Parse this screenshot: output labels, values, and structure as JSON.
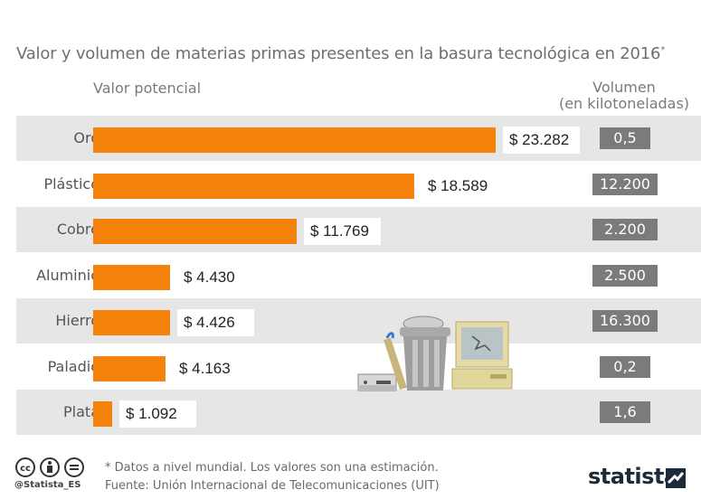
{
  "header": {
    "title": "Valor y volumen de materias primas presentes en la basura tecnológica en 2016",
    "title_mark": "*",
    "col_left": "Valor potencial",
    "col_right_1": "Volumen",
    "col_right_2": "(en kilotoneladas)"
  },
  "chart_data": {
    "type": "bar",
    "orientation": "horizontal",
    "categories": [
      "Oro",
      "Plástico",
      "Cobre",
      "Aluminio",
      "Hierro",
      "Paladio",
      "Plata"
    ],
    "series": [
      {
        "values": [
          23282,
          18589,
          11769,
          4430,
          4426,
          4163,
          1092
        ]
      }
    ],
    "value_labels": [
      "$ 23.282",
      "$ 18.589",
      "$ 11.769",
      "$ 4.430",
      "$ 4.426",
      "$ 4.163",
      "$ 1.092"
    ],
    "volume_labels": [
      "0,5",
      "12.200",
      "2.200",
      "2.500",
      "16.300",
      "0,2",
      "1,6"
    ],
    "xlim": [
      0,
      23282
    ],
    "bar_color": "#f5820a",
    "volume_color": "#7b7b7b",
    "grid": false,
    "legend": "none"
  },
  "footer": {
    "note": "* Datos a nivel mundial. Los valores son una estimación.",
    "source": "Fuente: Unión Internacional de Telecomunicaciones (UIT)",
    "handle": "@Statista_ES",
    "logo": "statista"
  },
  "icons": [
    "creative-commons-icon",
    "attribution-icon",
    "no-derivatives-icon",
    "statista-logo-icon",
    "ewaste-illustration-icon"
  ]
}
